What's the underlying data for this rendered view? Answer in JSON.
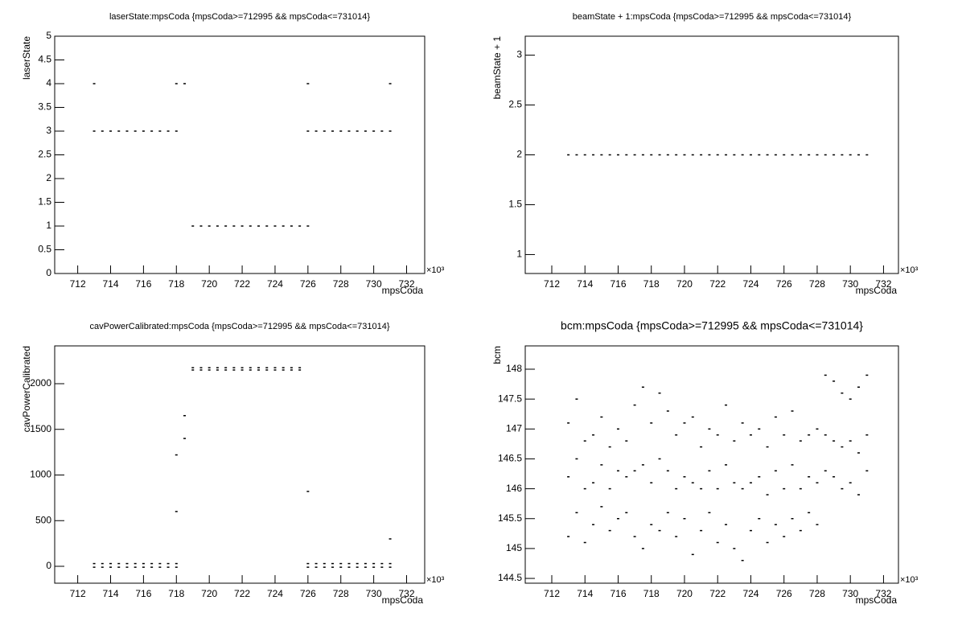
{
  "chart_data": [
    {
      "type": "scatter",
      "title": "laserState:mpsCoda {mpsCoda>=712995 && mpsCoda<=731014}",
      "x_label": "mpsCoda",
      "y_label": "laserState",
      "x_multiplier": "×10³",
      "color": "#000000",
      "x": [
        713,
        713.5,
        714,
        714.5,
        715,
        715.5,
        716,
        716.5,
        717,
        717.5,
        718,
        718.5,
        719,
        719.5,
        720,
        720.5,
        721,
        721.5,
        722,
        722.5,
        723,
        723.5,
        724,
        724.5,
        725,
        725.5,
        726,
        726.5,
        727,
        727.5,
        728,
        728.5,
        729,
        729.5,
        730,
        730.5,
        731
      ],
      "series": [
        {
          "values": [
            3,
            3,
            3,
            3,
            3,
            3,
            3,
            3,
            3,
            3,
            3,
            null,
            null,
            null,
            null,
            null,
            null,
            null,
            null,
            null,
            null,
            null,
            null,
            null,
            null,
            null,
            3,
            3,
            3,
            3,
            3,
            3,
            3,
            3,
            3,
            3,
            3
          ]
        },
        {
          "values": [
            4,
            null,
            null,
            null,
            null,
            null,
            null,
            null,
            null,
            null,
            null,
            4,
            1,
            1,
            1,
            1,
            1,
            1,
            1,
            1,
            1,
            1,
            1,
            1,
            1,
            1,
            1,
            null,
            null,
            null,
            null,
            null,
            null,
            null,
            null,
            null,
            null
          ]
        },
        {
          "values": [
            null,
            null,
            null,
            null,
            null,
            null,
            null,
            null,
            null,
            null,
            4,
            null,
            null,
            null,
            null,
            null,
            null,
            null,
            null,
            null,
            null,
            null,
            null,
            null,
            null,
            null,
            4,
            null,
            null,
            null,
            null,
            null,
            null,
            null,
            null,
            null,
            4
          ]
        }
      ],
      "xlim": [
        710.6,
        733.1
      ],
      "xticks": [
        712,
        714,
        716,
        718,
        720,
        722,
        724,
        726,
        728,
        730,
        732
      ],
      "ylim": [
        0,
        5
      ],
      "yticks": [
        0,
        0.5,
        1,
        1.5,
        2,
        2.5,
        3,
        3.5,
        4,
        4.5,
        5
      ]
    },
    {
      "type": "scatter",
      "title": "beamState + 1:mpsCoda {mpsCoda>=712995 && mpsCoda<=731014}",
      "x_label": "mpsCoda",
      "y_label": "beamState + 1",
      "x_multiplier": "×10³",
      "color": "#000000",
      "x": [
        713,
        713.5,
        714,
        714.5,
        715,
        715.5,
        716,
        716.5,
        717,
        717.5,
        718,
        718.5,
        719,
        719.5,
        720,
        720.5,
        721,
        721.5,
        722,
        722.5,
        723,
        723.5,
        724,
        724.5,
        725,
        725.5,
        726,
        726.5,
        727,
        727.5,
        728,
        728.5,
        729,
        729.5,
        730,
        730.5,
        731
      ],
      "series": [
        {
          "values": [
            2,
            2,
            2,
            2,
            2,
            2,
            2,
            2,
            2,
            2,
            2,
            2,
            2,
            2,
            2,
            2,
            2,
            2,
            2,
            2,
            2,
            2,
            2,
            2,
            2,
            2,
            2,
            2,
            2,
            2,
            2,
            2,
            2,
            2,
            2,
            2,
            2
          ]
        }
      ],
      "xlim": [
        710.4,
        732.9
      ],
      "xticks": [
        712,
        714,
        716,
        718,
        720,
        722,
        724,
        726,
        728,
        730,
        732
      ],
      "ylim": [
        0.81,
        3.19
      ],
      "yticks": [
        1,
        1.5,
        2,
        2.5,
        3
      ]
    },
    {
      "type": "scatter",
      "title": "cavPowerCalibrated:mpsCoda {mpsCoda>=712995 && mpsCoda<=731014}",
      "x_label": "mpsCoda",
      "y_label": "cavPowerCalibrated",
      "x_multiplier": "×10³",
      "color": "#000000",
      "x": [
        713,
        713.5,
        714,
        714.5,
        715,
        715.5,
        716,
        716.5,
        717,
        717.5,
        718,
        718.5,
        719,
        719.5,
        720,
        720.5,
        721,
        721.5,
        722,
        722.5,
        723,
        723.5,
        724,
        724.5,
        725,
        725.5,
        726,
        726.5,
        727,
        727.5,
        728,
        728.5,
        729,
        729.5,
        730,
        730.5,
        731
      ],
      "series": [
        {
          "values": [
            -10,
            -10,
            -10,
            -10,
            -10,
            -10,
            -10,
            -10,
            -10,
            -10,
            -10,
            null,
            null,
            null,
            null,
            null,
            null,
            null,
            null,
            null,
            null,
            null,
            null,
            null,
            null,
            null,
            -10,
            -10,
            -10,
            -10,
            -10,
            -10,
            -10,
            -10,
            -10,
            -10,
            -10
          ]
        },
        {
          "values": [
            30,
            30,
            30,
            30,
            30,
            30,
            30,
            30,
            30,
            30,
            30,
            null,
            null,
            null,
            null,
            null,
            null,
            null,
            null,
            null,
            null,
            null,
            null,
            null,
            null,
            null,
            30,
            30,
            30,
            30,
            30,
            30,
            30,
            30,
            30,
            30,
            30
          ]
        },
        {
          "values": [
            null,
            null,
            null,
            null,
            null,
            null,
            null,
            null,
            null,
            null,
            1220,
            1400,
            2150,
            2150,
            2150,
            2150,
            2150,
            2150,
            2150,
            2150,
            2150,
            2150,
            2150,
            2150,
            2150,
            2150,
            null,
            null,
            null,
            null,
            null,
            null,
            null,
            null,
            null,
            null,
            300
          ]
        },
        {
          "values": [
            null,
            null,
            null,
            null,
            null,
            null,
            null,
            null,
            null,
            null,
            600,
            1650,
            2175,
            2175,
            2175,
            2175,
            2175,
            2175,
            2175,
            2175,
            2175,
            2175,
            2175,
            2175,
            2175,
            2175,
            820,
            null,
            null,
            null,
            null,
            null,
            null,
            null,
            null,
            null,
            null
          ]
        }
      ],
      "xlim": [
        710.6,
        733.1
      ],
      "xticks": [
        712,
        714,
        716,
        718,
        720,
        722,
        724,
        726,
        728,
        730,
        732
      ],
      "ylim": [
        -185,
        2414
      ],
      "yticks": [
        0,
        500,
        1000,
        1500,
        2000
      ]
    },
    {
      "type": "scatter",
      "title": "bcm:mpsCoda {mpsCoda>=712995 && mpsCoda<=731014}",
      "x_label": "mpsCoda",
      "y_label": "bcm",
      "x_multiplier": "×10³",
      "color": "#000000",
      "x": [
        713,
        713.5,
        714,
        714.5,
        715,
        715.5,
        716,
        716.5,
        717,
        717.5,
        718,
        718.5,
        719,
        719.5,
        720,
        720.5,
        721,
        721.5,
        722,
        722.5,
        723,
        723.5,
        724,
        724.5,
        725,
        725.5,
        726,
        726.5,
        727,
        727.5,
        728,
        728.5,
        729,
        729.5,
        730,
        730.5,
        731
      ],
      "series": [
        {
          "values": [
            145.2,
            145.6,
            145.1,
            145.4,
            145.7,
            145.3,
            145.5,
            145.6,
            145.2,
            145.0,
            145.4,
            145.3,
            145.6,
            145.2,
            145.5,
            144.9,
            145.3,
            145.6,
            145.1,
            145.4,
            145.0,
            144.8,
            145.3,
            145.5,
            145.1,
            145.4,
            145.2,
            145.5,
            145.3,
            145.6,
            145.4,
            146.3,
            146.2,
            146.0,
            146.1,
            145.9,
            146.3
          ]
        },
        {
          "values": [
            146.2,
            146.5,
            146.0,
            146.1,
            146.4,
            146.0,
            146.3,
            146.2,
            146.3,
            146.4,
            146.1,
            146.5,
            146.3,
            146.0,
            146.2,
            146.1,
            146.0,
            146.3,
            146.0,
            146.4,
            146.1,
            146.0,
            146.1,
            146.2,
            145.9,
            146.3,
            146.0,
            146.4,
            146.0,
            146.2,
            146.1,
            146.9,
            146.8,
            146.7,
            146.8,
            146.6,
            146.9
          ]
        },
        {
          "values": [
            147.1,
            147.5,
            146.8,
            146.9,
            147.2,
            146.7,
            147.0,
            146.8,
            147.4,
            147.7,
            147.1,
            147.6,
            147.3,
            146.9,
            147.1,
            147.2,
            146.7,
            147.0,
            146.9,
            147.4,
            146.8,
            147.1,
            146.9,
            147.0,
            146.7,
            147.2,
            146.9,
            147.3,
            146.8,
            146.9,
            147.0,
            147.9,
            147.8,
            147.6,
            147.5,
            147.7,
            147.9
          ]
        }
      ],
      "xlim": [
        710.4,
        732.9
      ],
      "xticks": [
        712,
        714,
        716,
        718,
        720,
        722,
        724,
        726,
        728,
        730,
        732
      ],
      "ylim": [
        144.42,
        148.39
      ],
      "yticks": [
        144.5,
        145,
        145.5,
        146,
        146.5,
        147,
        147.5,
        148
      ]
    }
  ]
}
